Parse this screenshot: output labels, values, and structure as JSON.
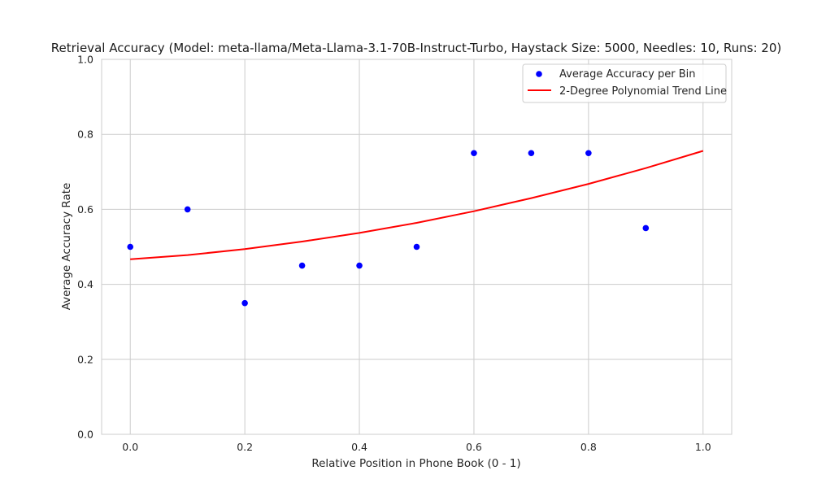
{
  "chart_data": {
    "type": "scatter",
    "title": "Retrieval Accuracy (Model: meta-llama/Meta-Llama-3.1-70B-Instruct-Turbo, Haystack Size: 5000, Needles: 10, Runs: 20)",
    "xlabel": "Relative Position in Phone Book (0 - 1)",
    "ylabel": "Average Accuracy Rate",
    "xlim": [
      -0.05,
      1.05
    ],
    "ylim": [
      0.0,
      1.0
    ],
    "xticks": [
      "0.0",
      "0.2",
      "0.4",
      "0.6",
      "0.8",
      "1.0"
    ],
    "yticks": [
      "0.0",
      "0.2",
      "0.4",
      "0.6",
      "0.8",
      "1.0"
    ],
    "grid": true,
    "legend_position": "upper right",
    "series": [
      {
        "name": "Average Accuracy per Bin",
        "kind": "scatter",
        "color": "#0000ff",
        "x": [
          0.0,
          0.1,
          0.2,
          0.3,
          0.4,
          0.5,
          0.6,
          0.7,
          0.8,
          0.9
        ],
        "y": [
          0.5,
          0.6,
          0.35,
          0.45,
          0.45,
          0.5,
          0.75,
          0.75,
          0.75,
          0.55
        ]
      },
      {
        "name": "2-Degree Polynomial Trend Line",
        "kind": "line",
        "color": "#ff0000",
        "x": [
          0.0,
          0.1,
          0.2,
          0.3,
          0.4,
          0.5,
          0.6,
          0.7,
          0.8,
          0.9,
          1.0
        ],
        "y": [
          0.467,
          0.478,
          0.494,
          0.514,
          0.537,
          0.564,
          0.595,
          0.63,
          0.668,
          0.71,
          0.756
        ]
      }
    ]
  }
}
